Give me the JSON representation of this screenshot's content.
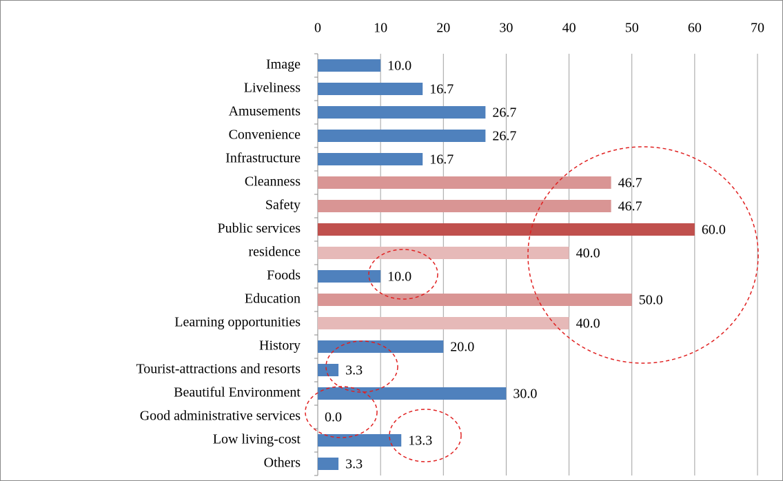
{
  "chart_data": {
    "type": "hbar",
    "categories": [
      "Image",
      "Liveliness",
      "Amusements",
      "Convenience",
      "Infrastructure",
      "Cleanness",
      "Safety",
      "Public services",
      "residence",
      "Foods",
      "Education",
      "Learning opportunities",
      "History",
      "Tourist-attractions and resorts",
      "Beautiful Environment",
      "Good administrative services",
      "Low living-cost",
      "Others"
    ],
    "values": [
      10,
      16.7,
      26.7,
      26.7,
      16.7,
      46.7,
      46.7,
      60,
      40,
      10,
      50,
      40,
      20,
      3.3,
      30,
      0,
      13.3,
      3.3
    ],
    "value_labels": [
      "10.0",
      "16.7",
      "26.7",
      "26.7",
      "16.7",
      "46.7",
      "46.7",
      "60.0",
      "40.0",
      "10.0",
      "50.0",
      "40.0",
      "20.0",
      "3.3",
      "30.0",
      "0.0",
      "13.3",
      "3.3"
    ],
    "colors": [
      "#4f81bd",
      "#4f81bd",
      "#4f81bd",
      "#4f81bd",
      "#4f81bd",
      "#d99594",
      "#d99594",
      "#c0504d",
      "#e6b9b8",
      "#4f81bd",
      "#d99594",
      "#e6b9b8",
      "#4f81bd",
      "#4f81bd",
      "#4f81bd",
      "#4f81bd",
      "#4f81bd",
      "#4f81bd"
    ],
    "xlim": [
      0,
      70
    ],
    "xticks": [
      0,
      10,
      20,
      30,
      40,
      50,
      60,
      70
    ],
    "grid": true
  }
}
